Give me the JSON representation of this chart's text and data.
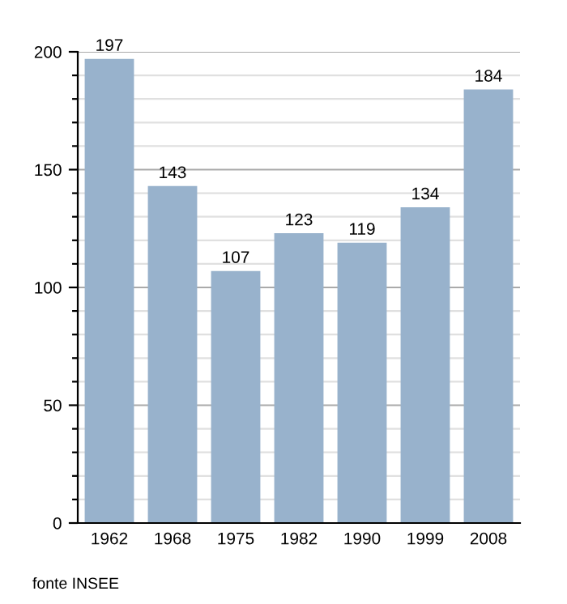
{
  "chart_data": {
    "type": "bar",
    "categories": [
      "1962",
      "1968",
      "1975",
      "1982",
      "1990",
      "1999",
      "2008"
    ],
    "values": [
      197,
      143,
      107,
      123,
      119,
      134,
      184
    ],
    "color": "#98b2cc",
    "data_labels": true,
    "grid": "y",
    "ylim": [
      0,
      200
    ],
    "yticks": [
      0,
      {
        "value": 10,
        "label": null
      },
      {
        "value": 20,
        "label": null
      },
      {
        "value": 30,
        "label": null
      },
      {
        "value": 40,
        "label": null
      },
      50,
      {
        "value": 60,
        "label": null
      },
      {
        "value": 70,
        "label": null
      },
      {
        "value": 80,
        "label": null
      },
      {
        "value": 90,
        "label": null
      },
      100,
      {
        "value": 110,
        "label": null
      },
      {
        "value": 120,
        "label": null
      },
      {
        "value": 130,
        "label": null
      },
      {
        "value": 140,
        "label": null
      },
      150,
      {
        "value": 160,
        "label": null
      },
      {
        "value": 170,
        "label": null
      },
      {
        "value": 180,
        "label": null
      },
      {
        "value": 190,
        "label": null
      },
      200
    ],
    "annotations": [
      "fonte INSEE"
    ]
  }
}
